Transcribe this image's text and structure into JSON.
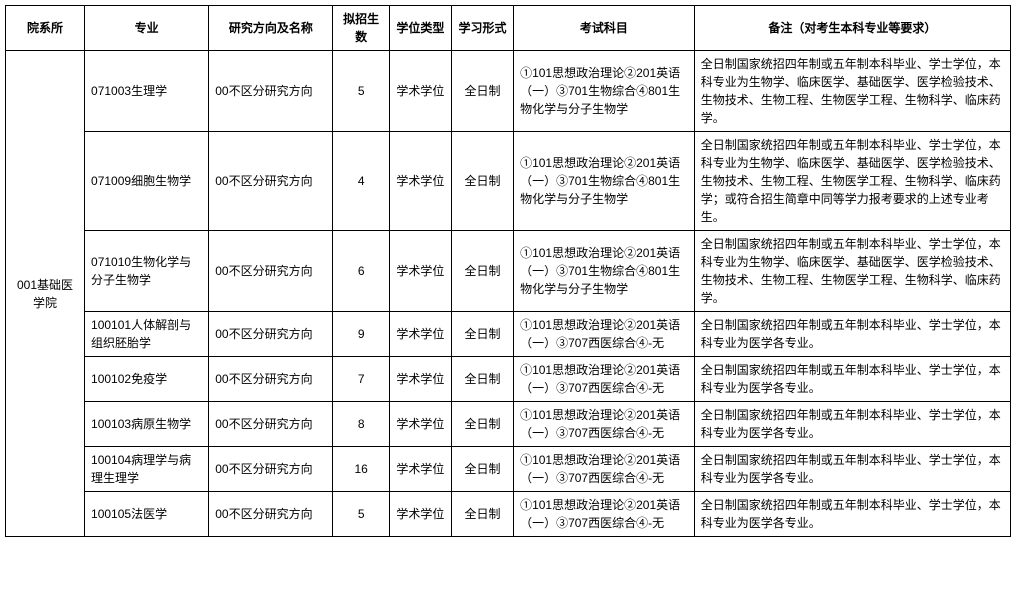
{
  "table": {
    "headers": {
      "dept": "院系所",
      "major": "专业",
      "direction": "研究方向及名称",
      "enroll": "拟招生数",
      "degree": "学位类型",
      "mode": "学习形式",
      "exam": "考试科目",
      "note": "备注（对考生本科专业等要求）"
    },
    "dept": "001基础医学院",
    "rows": [
      {
        "major": "071003生理学",
        "direction": "00不区分研究方向",
        "enroll": "5",
        "degree": "学术学位",
        "mode": "全日制",
        "exam": "①101思想政治理论②201英语（一）③701生物综合④801生物化学与分子生物学",
        "note": "全日制国家统招四年制或五年制本科毕业、学士学位，本科专业为生物学、临床医学、基础医学、医学检验技术、生物技术、生物工程、生物医学工程、生物科学、临床药学。"
      },
      {
        "major": "071009细胞生物学",
        "direction": "00不区分研究方向",
        "enroll": "4",
        "degree": "学术学位",
        "mode": "全日制",
        "exam": "①101思想政治理论②201英语（一）③701生物综合④801生物化学与分子生物学",
        "note": "全日制国家统招四年制或五年制本科毕业、学士学位，本科专业为生物学、临床医学、基础医学、医学检验技术、生物技术、生物工程、生物医学工程、生物科学、临床药学；或符合招生简章中同等学力报考要求的上述专业考生。"
      },
      {
        "major": "071010生物化学与分子生物学",
        "direction": "00不区分研究方向",
        "enroll": "6",
        "degree": "学术学位",
        "mode": "全日制",
        "exam": "①101思想政治理论②201英语（一）③701生物综合④801生物化学与分子生物学",
        "note": "全日制国家统招四年制或五年制本科毕业、学士学位，本科专业为生物学、临床医学、基础医学、医学检验技术、生物技术、生物工程、生物医学工程、生物科学、临床药学。"
      },
      {
        "major": "100101人体解剖与组织胚胎学",
        "direction": "00不区分研究方向",
        "enroll": "9",
        "degree": "学术学位",
        "mode": "全日制",
        "exam": "①101思想政治理论②201英语（一）③707西医综合④-无",
        "note": "全日制国家统招四年制或五年制本科毕业、学士学位，本科专业为医学各专业。"
      },
      {
        "major": "100102免疫学",
        "direction": "00不区分研究方向",
        "enroll": "7",
        "degree": "学术学位",
        "mode": "全日制",
        "exam": "①101思想政治理论②201英语（一）③707西医综合④-无",
        "note": "全日制国家统招四年制或五年制本科毕业、学士学位，本科专业为医学各专业。"
      },
      {
        "major": "100103病原生物学",
        "direction": "00不区分研究方向",
        "enroll": "8",
        "degree": "学术学位",
        "mode": "全日制",
        "exam": "①101思想政治理论②201英语（一）③707西医综合④-无",
        "note": "全日制国家统招四年制或五年制本科毕业、学士学位，本科专业为医学各专业。"
      },
      {
        "major": "100104病理学与病理生理学",
        "direction": "00不区分研究方向",
        "enroll": "16",
        "degree": "学术学位",
        "mode": "全日制",
        "exam": "①101思想政治理论②201英语（一）③707西医综合④-无",
        "note": "全日制国家统招四年制或五年制本科毕业、学士学位，本科专业为医学各专业。"
      },
      {
        "major": "100105法医学",
        "direction": "00不区分研究方向",
        "enroll": "5",
        "degree": "学术学位",
        "mode": "全日制",
        "exam": "①101思想政治理论②201英语（一）③707西医综合④-无",
        "note": "全日制国家统招四年制或五年制本科毕业、学士学位，本科专业为医学各专业。"
      }
    ]
  }
}
